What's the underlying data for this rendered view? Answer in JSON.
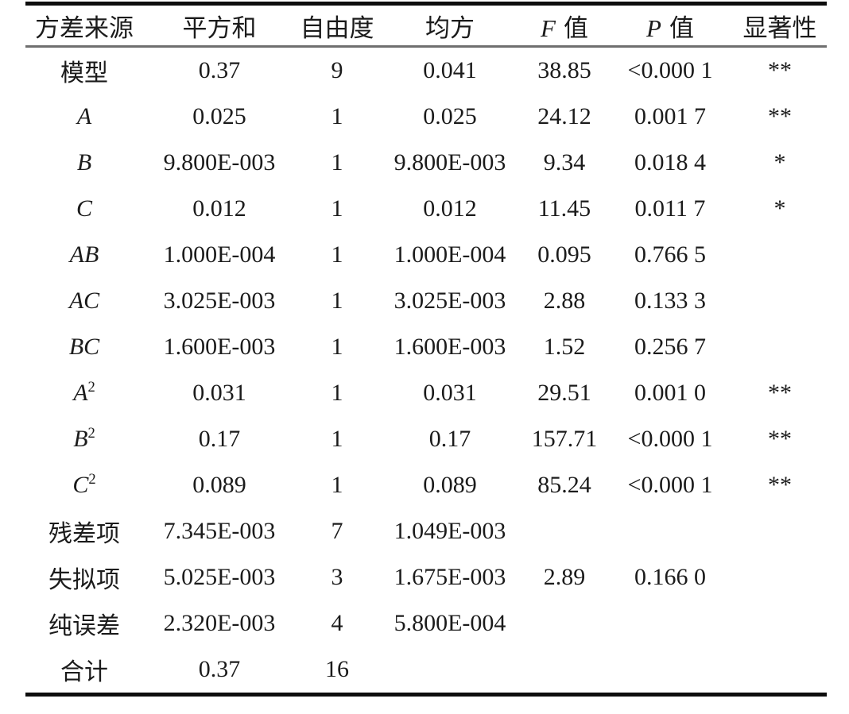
{
  "colors": {
    "background": "#ffffff",
    "text": "#1b1b1b",
    "rule_heavy": "#0d0d0d",
    "rule_light": "#6f6f6f"
  },
  "table": {
    "col_names": [
      "source",
      "sum-of-squares",
      "degrees-of-freedom",
      "mean-square",
      "f-value",
      "p-value",
      "significance"
    ],
    "columns": [
      {
        "italic": "",
        "label": "方差来源"
      },
      {
        "italic": "",
        "label": "平方和"
      },
      {
        "italic": "",
        "label": "自由度"
      },
      {
        "italic": "",
        "label": "均方"
      },
      {
        "italic": "F",
        "label": "值"
      },
      {
        "italic": "P",
        "label": "值"
      },
      {
        "italic": "",
        "label": "显著性"
      }
    ],
    "rows": [
      {
        "source": {
          "label": "模型",
          "italic": false,
          "sup": ""
        },
        "cells": [
          "0.37",
          "9",
          "0.041",
          "38.85",
          "<0.000 1",
          "**"
        ]
      },
      {
        "source": {
          "label": "A",
          "italic": true,
          "sup": ""
        },
        "cells": [
          "0.025",
          "1",
          "0.025",
          "24.12",
          "0.001 7",
          "**"
        ]
      },
      {
        "source": {
          "label": "B",
          "italic": true,
          "sup": ""
        },
        "cells": [
          "9.800E-003",
          "1",
          "9.800E-003",
          "9.34",
          "0.018 4",
          "*"
        ]
      },
      {
        "source": {
          "label": "C",
          "italic": true,
          "sup": ""
        },
        "cells": [
          "0.012",
          "1",
          "0.012",
          "11.45",
          "0.011 7",
          "*"
        ]
      },
      {
        "source": {
          "label": "AB",
          "italic": true,
          "sup": ""
        },
        "cells": [
          "1.000E-004",
          "1",
          "1.000E-004",
          "0.095",
          "0.766 5",
          ""
        ]
      },
      {
        "source": {
          "label": "AC",
          "italic": true,
          "sup": ""
        },
        "cells": [
          "3.025E-003",
          "1",
          "3.025E-003",
          "2.88",
          "0.133 3",
          ""
        ]
      },
      {
        "source": {
          "label": "BC",
          "italic": true,
          "sup": ""
        },
        "cells": [
          "1.600E-003",
          "1",
          "1.600E-003",
          "1.52",
          "0.256 7",
          ""
        ]
      },
      {
        "source": {
          "label": "A",
          "italic": true,
          "sup": "2"
        },
        "cells": [
          "0.031",
          "1",
          "0.031",
          "29.51",
          "0.001 0",
          "**"
        ]
      },
      {
        "source": {
          "label": "B",
          "italic": true,
          "sup": "2"
        },
        "cells": [
          "0.17",
          "1",
          "0.17",
          "157.71",
          "<0.000 1",
          "**"
        ]
      },
      {
        "source": {
          "label": "C",
          "italic": true,
          "sup": "2"
        },
        "cells": [
          "0.089",
          "1",
          "0.089",
          "85.24",
          "<0.000 1",
          "**"
        ]
      },
      {
        "source": {
          "label": "残差项",
          "italic": false,
          "sup": ""
        },
        "cells": [
          "7.345E-003",
          "7",
          "1.049E-003",
          "",
          "",
          ""
        ]
      },
      {
        "source": {
          "label": "失拟项",
          "italic": false,
          "sup": ""
        },
        "cells": [
          "5.025E-003",
          "3",
          "1.675E-003",
          "2.89",
          "0.166 0",
          ""
        ]
      },
      {
        "source": {
          "label": "纯误差",
          "italic": false,
          "sup": ""
        },
        "cells": [
          "2.320E-003",
          "4",
          "5.800E-004",
          "",
          "",
          ""
        ]
      },
      {
        "source": {
          "label": "合计",
          "italic": false,
          "sup": ""
        },
        "cells": [
          "0.37",
          "16",
          "",
          "",
          "",
          ""
        ]
      }
    ]
  }
}
